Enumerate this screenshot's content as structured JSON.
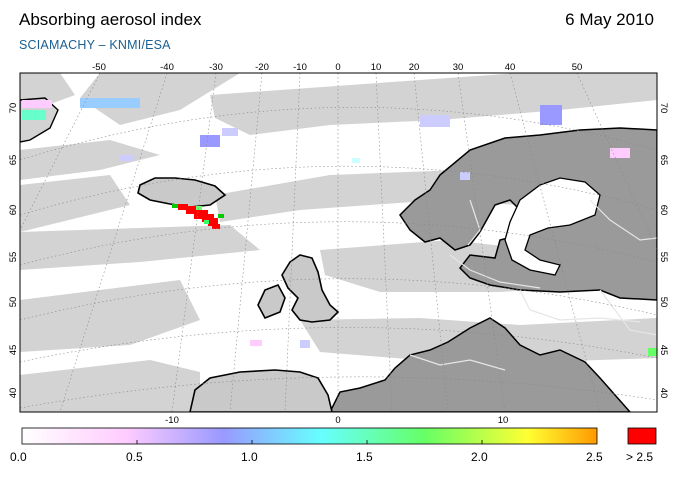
{
  "header": {
    "title": "Absorbing aerosol index",
    "date": "6 May 2010",
    "subtitle": "SCIAMACHY  –  KNMI/ESA"
  },
  "map": {
    "projection": "polar-stereographic",
    "top_lon_labels": [
      "-50",
      "-40",
      "-30",
      "-20",
      "-10",
      "0",
      "10",
      "20",
      "30",
      "40",
      "50"
    ],
    "bottom_lon_labels": [
      "-10",
      "0",
      "10"
    ],
    "lat_labels": [
      "70",
      "65",
      "60",
      "55",
      "50",
      "45",
      "40"
    ],
    "colors": {
      "ocean": "#ffffff",
      "land": "#cfcfcf",
      "no_data_swath": "#d4d4d4",
      "continent_dark": "#9a9a9a",
      "coastline": "#000000",
      "borders": "#e8e8e8"
    }
  },
  "colorbar": {
    "tick_labels": [
      "0.0",
      "0.5",
      "1.0",
      "1.5",
      "2.0",
      "2.5"
    ],
    "overflow_label": "> 2.5",
    "overflow_color": "#ff0000",
    "gradient_stops": [
      "#ffffff",
      "#ffccff",
      "#9999ff",
      "#66ffff",
      "#66ff66",
      "#ffff33",
      "#ff9900"
    ]
  }
}
